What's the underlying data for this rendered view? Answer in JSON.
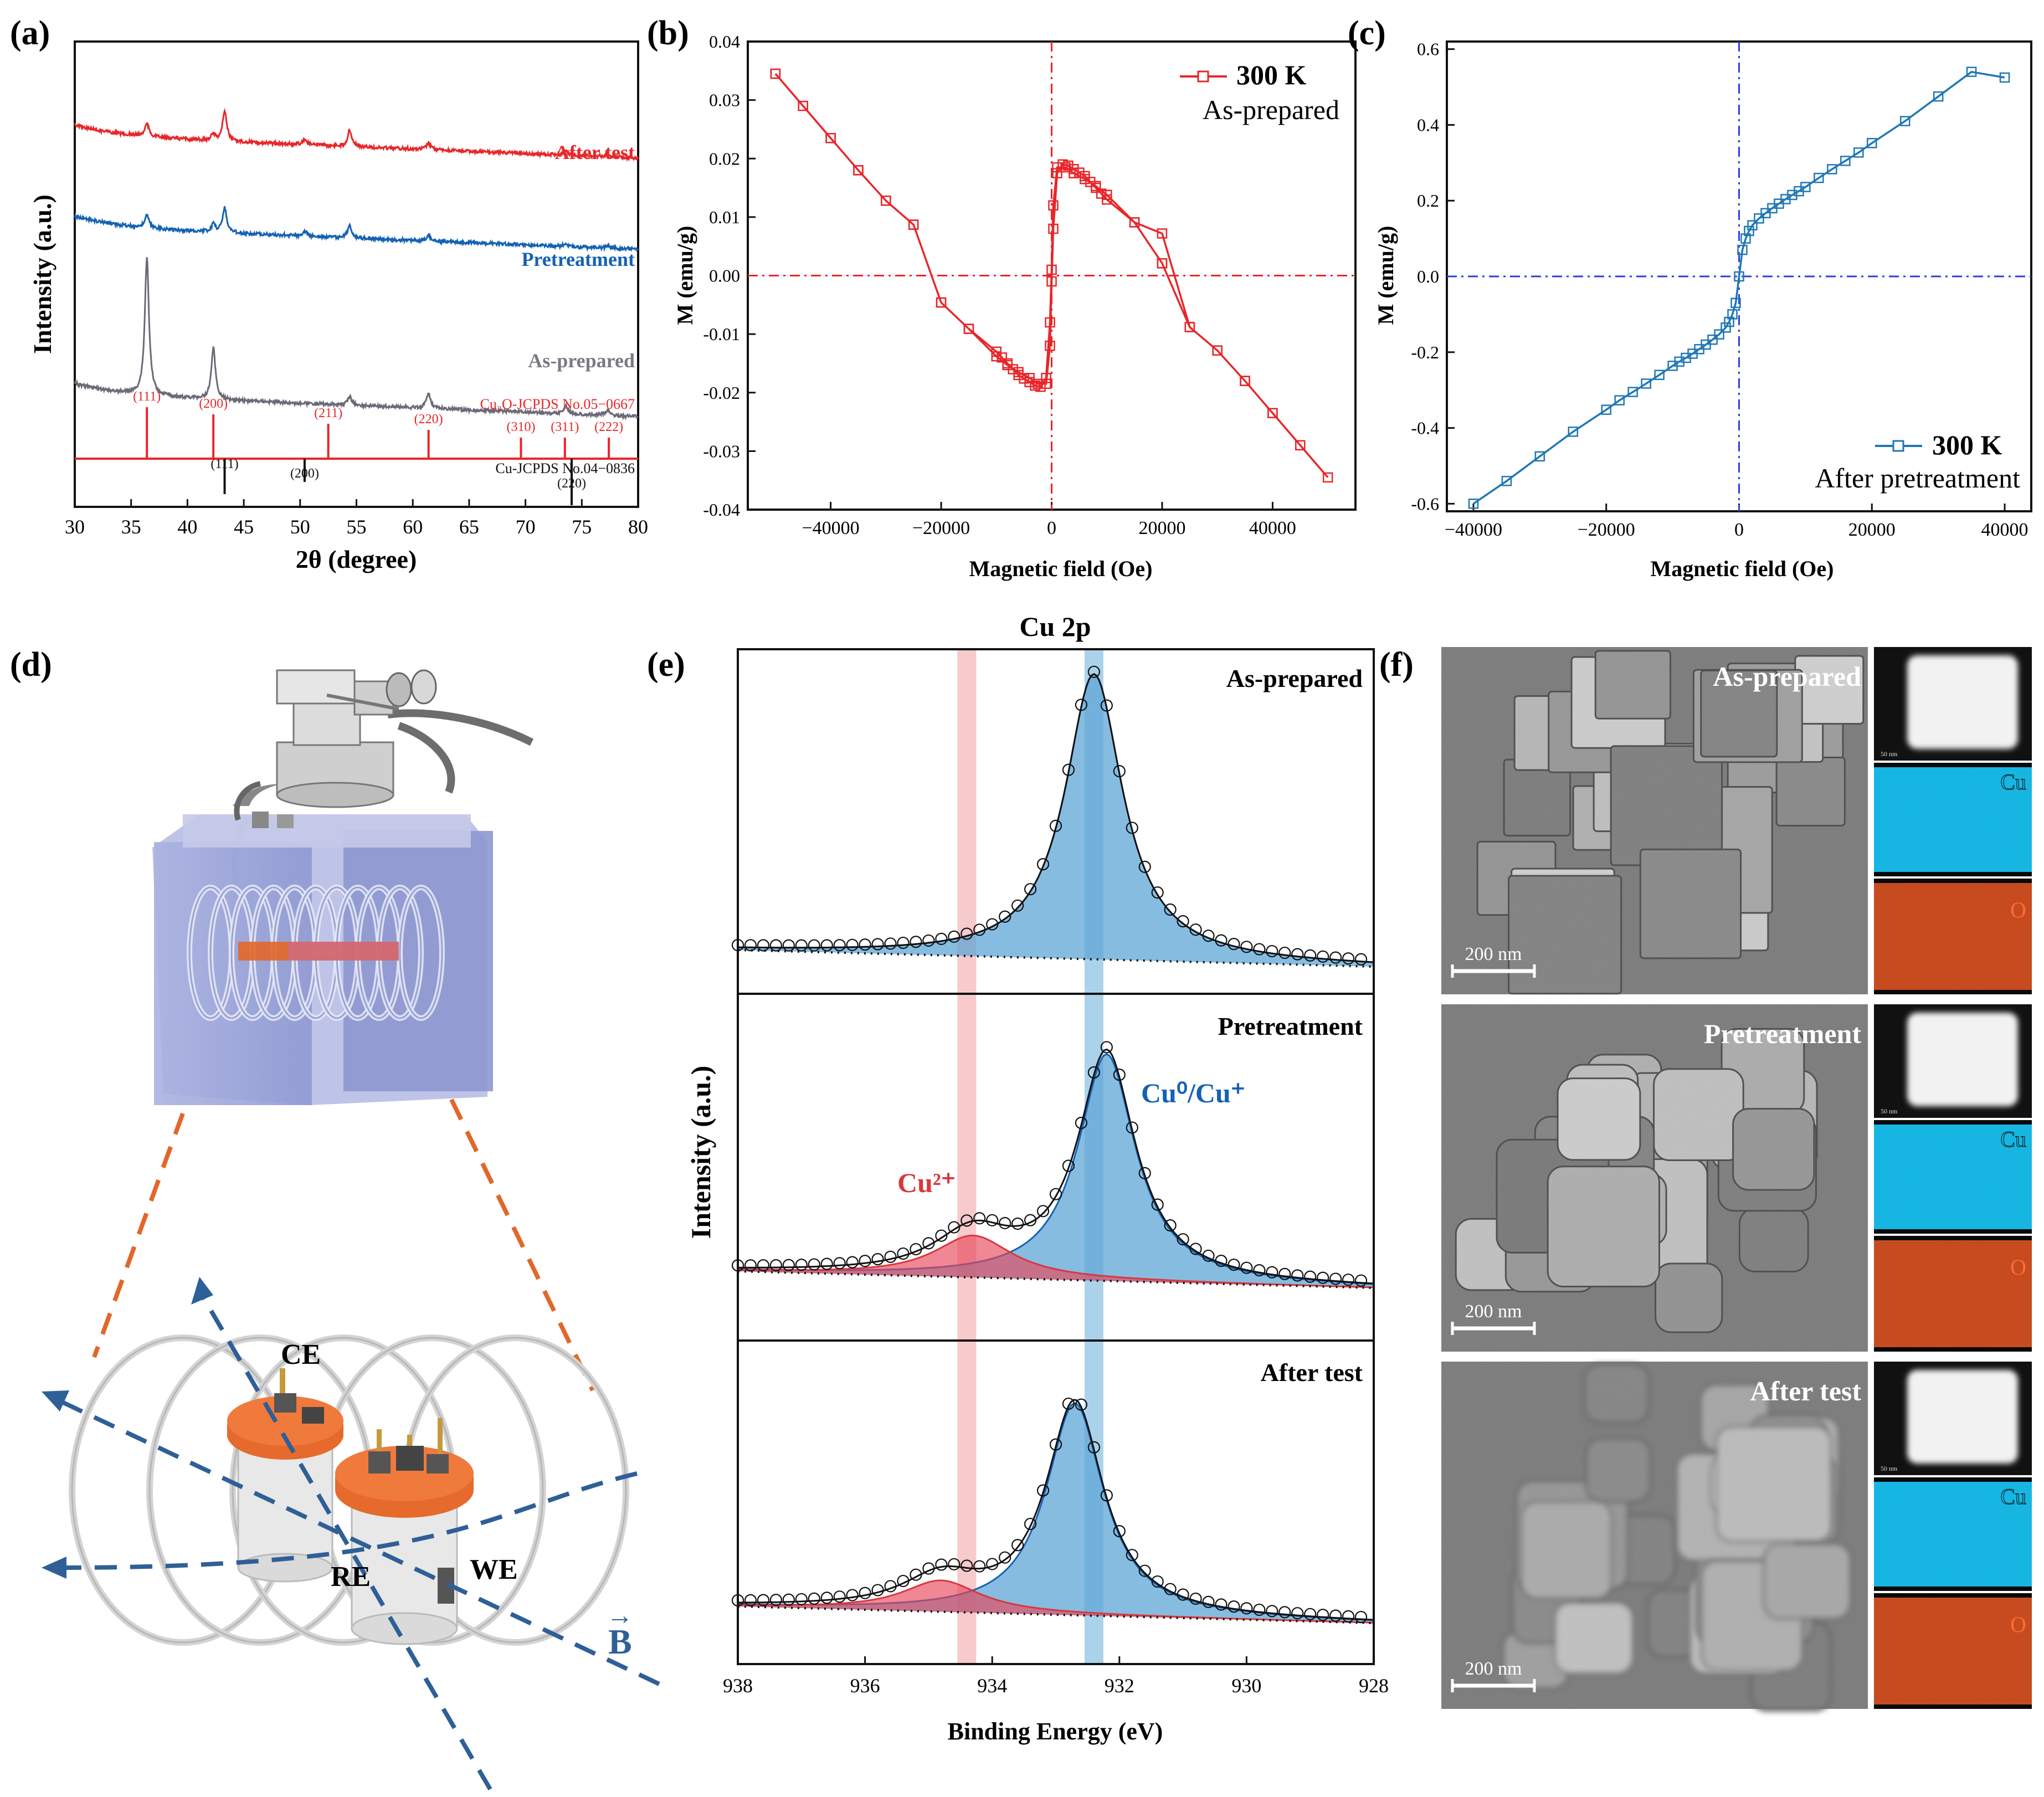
{
  "figure": {
    "panel_labels": [
      "(a)",
      "(b)",
      "(c)",
      "(d)",
      "(e)",
      "(f)"
    ],
    "colors": {
      "red": "#e8262a",
      "blue": "#1462b4",
      "gray": "#6a6a78",
      "dark": "#111111",
      "xps_blue": "#5ea6d6",
      "xps_red": "#e8475a",
      "mag_blue": "#1f77b4"
    }
  },
  "chart_data": [
    {
      "panel": "(a)",
      "type": "line",
      "title": "",
      "xlabel": "2θ (degree)",
      "ylabel": "Intensity (a.u.)",
      "xlim": [
        30,
        80
      ],
      "xticks": [
        "30",
        "35",
        "40",
        "45",
        "50",
        "55",
        "60",
        "65",
        "70",
        "75",
        "80"
      ],
      "series": [
        {
          "name": "After test",
          "color": "#e8262a",
          "baseline": 0.9,
          "peaks": [
            [
              36.4,
              0.42
            ],
            [
              42.3,
              0.22
            ],
            [
              43.3,
              1.0
            ],
            [
              50.4,
              0.18
            ],
            [
              54.4,
              0.55
            ],
            [
              61.4,
              0.22
            ],
            [
              73.6,
              0.12
            ],
            [
              77.3,
              0.1
            ]
          ]
        },
        {
          "name": "Pretreatment",
          "color": "#1462b4",
          "baseline": 0.62,
          "peaks": [
            [
              36.4,
              0.5
            ],
            [
              42.3,
              0.3
            ],
            [
              43.3,
              1.0
            ],
            [
              50.4,
              0.2
            ],
            [
              54.4,
              0.5
            ],
            [
              61.4,
              0.2
            ],
            [
              73.6,
              0.1
            ],
            [
              77.3,
              0.08
            ]
          ]
        },
        {
          "name": "As-prepared",
          "color": "#6a6a78",
          "baseline": 0.36,
          "peaks": [
            [
              36.4,
              4.0
            ],
            [
              42.3,
              1.5
            ],
            [
              54.4,
              0.25
            ],
            [
              61.4,
              0.45
            ],
            [
              73.6,
              0.22
            ],
            [
              77.3,
              0.15
            ]
          ]
        }
      ],
      "references": [
        {
          "name": "Cu₂O-JCPDS No.05−0667",
          "color": "#e8262a",
          "lines": [
            {
              "x": 36.4,
              "label": "(111)"
            },
            {
              "x": 42.3,
              "label": "(200)"
            },
            {
              "x": 52.5,
              "label": "(211)"
            },
            {
              "x": 61.4,
              "label": "(220)"
            },
            {
              "x": 69.6,
              "label": "(310)"
            },
            {
              "x": 73.5,
              "label": "(311)"
            },
            {
              "x": 77.4,
              "label": "(222)"
            }
          ]
        },
        {
          "name": "Cu-JCPDS No.04−0836",
          "color": "#111111",
          "lines": [
            {
              "x": 43.3,
              "label": "(111)"
            },
            {
              "x": 50.4,
              "label": "(200)"
            },
            {
              "x": 74.1,
              "label": "(220)"
            }
          ]
        }
      ]
    },
    {
      "panel": "(b)",
      "type": "line",
      "title": "",
      "xlabel": "Magnetic field (Oe)",
      "ylabel": "M (emu/g)",
      "xlim": [
        -55000,
        55000
      ],
      "ylim": [
        -0.04,
        0.04
      ],
      "xticks": [
        -40000,
        -20000,
        0,
        20000,
        40000
      ],
      "xtick_labels": [
        "−40000",
        "−20000",
        "0",
        "20000",
        "40000"
      ],
      "yticks": [
        -0.04,
        -0.03,
        -0.02,
        -0.01,
        0.0,
        0.01,
        0.02,
        0.03,
        0.04
      ],
      "ytick_labels": [
        "-0.04",
        "-0.03",
        "-0.02",
        "-0.01",
        "0.00",
        "0.01",
        "0.02",
        "0.03",
        "0.04"
      ],
      "legend": {
        "label": "300 K",
        "note": "As-prepared",
        "position": "top-right"
      },
      "series": [
        {
          "name": "300 K",
          "color": "#e8262a",
          "x": [
            -50000,
            -45000,
            -40000,
            -35000,
            -30000,
            -25000,
            -20000,
            -15000,
            -10000,
            -8000,
            -6000,
            -4000,
            -2500,
            -1000,
            -300,
            0,
            300,
            1000,
            2000,
            3000,
            4000,
            5000,
            6000,
            7000,
            8000,
            9000,
            10000,
            15000,
            20000,
            20000,
            25000,
            30000,
            35000,
            40000,
            45000,
            50000,
            45000,
            40000,
            35000,
            30000,
            25000,
            20000,
            15000,
            10000,
            8000,
            6000,
            4000,
            2500,
            1000,
            300,
            0,
            -300,
            -1000,
            -2000,
            -3000,
            -4000,
            -5000,
            -6000,
            -7000,
            -8000,
            -9000,
            -10000,
            -15000,
            -20000,
            -25000,
            -30000,
            -35000,
            -40000,
            -45000,
            -50000
          ],
          "y": [
            0.0345,
            0.029,
            0.0235,
            0.018,
            0.0128,
            0.0087,
            -0.0046,
            -0.0091,
            -0.0138,
            -0.0153,
            -0.0165,
            -0.0175,
            -0.0185,
            -0.0185,
            -0.012,
            -0.001,
            0.008,
            0.0175,
            0.019,
            0.0188,
            0.0182,
            0.0176,
            0.017,
            0.016,
            0.015,
            0.014,
            0.013,
            0.0091,
            0.0021,
            0.0021,
            -0.0088,
            -0.0128,
            -0.018,
            -0.0235,
            -0.029,
            -0.0345,
            -0.029,
            -0.0235,
            -0.018,
            -0.0128,
            -0.0088,
            0.0072,
            0.0091,
            0.0138,
            0.0153,
            0.0165,
            0.0175,
            0.0185,
            0.0185,
            0.012,
            0.001,
            -0.008,
            -0.0175,
            -0.019,
            -0.0188,
            -0.0182,
            -0.0176,
            -0.017,
            -0.016,
            -0.015,
            -0.014,
            -0.013,
            -0.0091,
            -0.0046,
            0.0087,
            0.0128,
            0.018,
            0.0235,
            0.029,
            0.0345
          ]
        }
      ]
    },
    {
      "panel": "(c)",
      "type": "line",
      "title": "",
      "xlabel": "Magnetic field (Oe)",
      "ylabel": "M (emu/g)",
      "xlim": [
        -44000,
        44000
      ],
      "ylim": [
        -0.62,
        0.62
      ],
      "xticks": [
        -40000,
        -20000,
        0,
        20000,
        40000
      ],
      "xtick_labels": [
        "−40000",
        "−20000",
        "0",
        "20000",
        "40000"
      ],
      "yticks": [
        -0.6,
        -0.4,
        -0.2,
        0.0,
        0.2,
        0.4,
        0.6
      ],
      "ytick_labels": [
        "-0.6",
        "-0.4",
        "-0.2",
        "0.0",
        "0.2",
        "0.4",
        "0.6"
      ],
      "legend": {
        "label": "300 K",
        "note": "After pretreatment",
        "position": "bottom-right"
      },
      "series": [
        {
          "name": "300 K",
          "color": "#1f77b4",
          "x": [
            -40000,
            -35000,
            -30000,
            -25000,
            -20000,
            -18000,
            -16000,
            -14000,
            -12000,
            -10000,
            -9000,
            -8000,
            -7000,
            -6000,
            -5000,
            -4000,
            -3000,
            -2000,
            -1500,
            -1000,
            -500,
            0,
            500,
            1000,
            1500,
            2000,
            3000,
            4000,
            5000,
            6000,
            7000,
            8000,
            9000,
            10000,
            12000,
            14000,
            16000,
            18000,
            20000,
            25000,
            30000,
            35000,
            40000
          ],
          "y": [
            -0.6,
            -0.54,
            -0.475,
            -0.41,
            -0.352,
            -0.327,
            -0.305,
            -0.283,
            -0.26,
            -0.236,
            -0.225,
            -0.215,
            -0.204,
            -0.192,
            -0.18,
            -0.167,
            -0.153,
            -0.135,
            -0.12,
            -0.1,
            -0.07,
            0.0,
            0.07,
            0.1,
            0.12,
            0.135,
            0.153,
            0.167,
            0.18,
            0.192,
            0.204,
            0.215,
            0.225,
            0.236,
            0.26,
            0.283,
            0.305,
            0.327,
            0.352,
            0.41,
            0.475,
            0.54,
            0.525
          ]
        }
      ]
    },
    {
      "panel": "(e)",
      "type": "area",
      "title": "Cu 2p",
      "xlabel": "Binding Energy (eV)",
      "ylabel": "Intensity (a.u.)",
      "xlim": [
        938,
        928
      ],
      "xticks": [
        938,
        936,
        934,
        932,
        930,
        928
      ],
      "xtick_labels": [
        "938",
        "936",
        "934",
        "932",
        "930",
        "928"
      ],
      "highlight_bands": [
        {
          "center": 934.4,
          "color": "#f4b8bb"
        },
        {
          "center": 932.4,
          "color": "#8fc3e4"
        }
      ],
      "annotations": [
        "Cu²⁺",
        "Cu⁰/Cu⁺"
      ],
      "panels": [
        {
          "name": "As-prepared",
          "components": [
            {
              "label": "Cu⁰/Cu⁺",
              "center": 932.4,
              "height": 1.0,
              "width": 0.55
            },
            {
              "label": "Cu²⁺",
              "center": 934.4,
              "height": 0.0,
              "width": 0.8
            }
          ]
        },
        {
          "name": "Pretreatment",
          "components": [
            {
              "label": "Cu⁰/Cu⁺",
              "center": 932.2,
              "height": 0.92,
              "width": 0.55
            },
            {
              "label": "Cu²⁺",
              "center": 934.3,
              "height": 0.17,
              "width": 0.75
            }
          ]
        },
        {
          "name": "After test",
          "components": [
            {
              "label": "Cu⁰/Cu⁺",
              "center": 932.7,
              "height": 0.88,
              "width": 0.55
            },
            {
              "label": "Cu²⁺",
              "center": 934.8,
              "height": 0.13,
              "width": 0.75
            }
          ]
        }
      ]
    }
  ],
  "schematic": {
    "labels": [
      "CE",
      "RE",
      "WE"
    ],
    "field_label": "B",
    "field_arrow": "→"
  },
  "micrographs": {
    "conditions": [
      "As-prepared",
      "Pretreatment",
      "After test"
    ],
    "scale_bar": "200 nm",
    "eds_elements": [
      "Cu",
      "O"
    ],
    "eds_scale": "50 nm"
  }
}
